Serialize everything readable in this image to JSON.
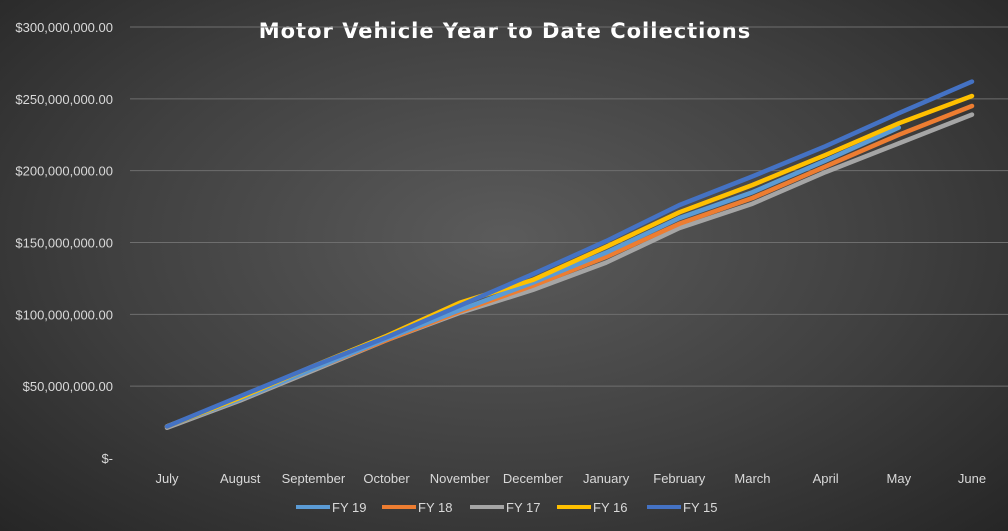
{
  "chart_data": {
    "type": "line",
    "title": "Motor Vehicle Year to Date Collections",
    "categories": [
      "July",
      "August",
      "September",
      "October",
      "November",
      "December",
      "January",
      "February",
      "March",
      "April",
      "May",
      "June"
    ],
    "y_tick_labels": [
      "$-",
      "$50,000,000.00",
      "$100,000,000.00",
      "$150,000,000.00",
      "$200,000,000.00",
      "$250,000,000.00",
      "$300,000,000.00"
    ],
    "ylim": [
      0,
      300000000
    ],
    "grid": true,
    "legend_position": "bottom",
    "series": [
      {
        "name": "FY 19",
        "color": "#5b9bd5",
        "values": [
          22000000,
          41000000,
          62000000,
          83000000,
          103000000,
          122000000,
          143000000,
          167000000,
          185000000,
          207000000,
          230000000,
          null
        ]
      },
      {
        "name": "FY 18",
        "color": "#ed7d31",
        "values": [
          22000000,
          41000000,
          62000000,
          82000000,
          102000000,
          120000000,
          140000000,
          163000000,
          181000000,
          203000000,
          225000000,
          245000000
        ]
      },
      {
        "name": "FY 17",
        "color": "#a5a5a5",
        "values": [
          21000000,
          40000000,
          61000000,
          82000000,
          101000000,
          117000000,
          136000000,
          160000000,
          177000000,
          199000000,
          219000000,
          239000000
        ]
      },
      {
        "name": "FY 16",
        "color": "#ffc000",
        "values": [
          22000000,
          42000000,
          64000000,
          85000000,
          108000000,
          124000000,
          147000000,
          171000000,
          190000000,
          211000000,
          233000000,
          252000000
        ]
      },
      {
        "name": "FY 15",
        "color": "#4472c4",
        "values": [
          22000000,
          43000000,
          64000000,
          84000000,
          106000000,
          128000000,
          151000000,
          176000000,
          196000000,
          217000000,
          240000000,
          262000000
        ]
      }
    ]
  }
}
